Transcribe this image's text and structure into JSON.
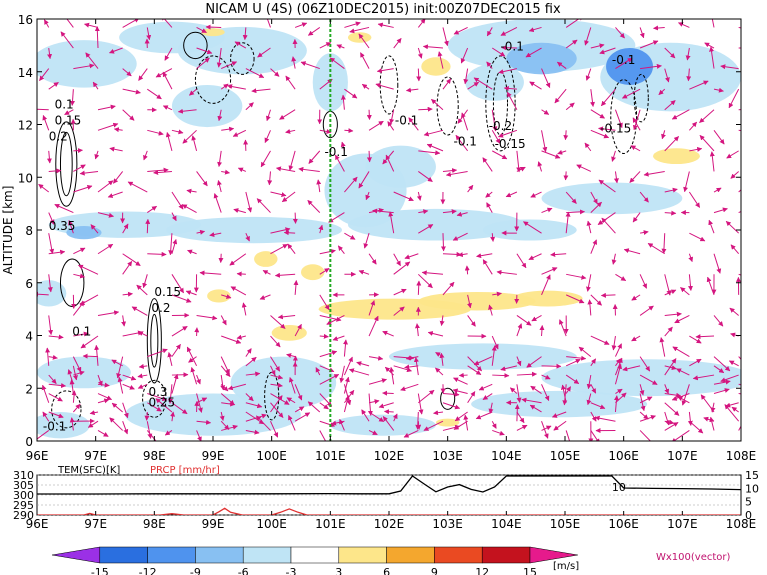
{
  "chart_data": [
    {
      "type": "heatmap",
      "title": "NICAM U (4S) (06Z10DEC2015) init:00Z07DEC2015 fix",
      "xlabel": "",
      "ylabel": "ALTITUDE [km]",
      "x_ticks": [
        "96E",
        "97E",
        "98E",
        "99E",
        "100E",
        "101E",
        "102E",
        "103E",
        "104E",
        "105E",
        "106E",
        "107E",
        "108E"
      ],
      "xlim": [
        96,
        108
      ],
      "y_ticks": [
        "0",
        "2",
        "4",
        "6",
        "8",
        "10",
        "12",
        "14",
        "16"
      ],
      "ylim": [
        0,
        16
      ],
      "grid": false,
      "marker_line_lon": 101,
      "colorbar": {
        "levels": [
          "-15",
          "-12",
          "-9",
          "-6",
          "-3",
          "3",
          "6",
          "9",
          "12",
          "15"
        ],
        "units": "[m/s]",
        "colors": [
          "#9b30e6",
          "#2a6fe0",
          "#4f93ee",
          "#88c0f2",
          "#bfe4f5",
          "#ffffff",
          "#fde68a",
          "#f4a72e",
          "#ea4a22",
          "#c4121e",
          "#e61a8c"
        ]
      },
      "vector_label": "Wx100(vector)",
      "contour_labels": [
        {
          "text": "-0.1",
          "lon": 96.1,
          "alt": 0.4
        },
        {
          "text": "0.25",
          "lon": 97.9,
          "alt": 1.3
        },
        {
          "text": "0.3",
          "lon": 97.9,
          "alt": 1.7
        },
        {
          "text": "0.2",
          "lon": 97.95,
          "alt": 4.9
        },
        {
          "text": "0.15",
          "lon": 98.0,
          "alt": 5.5
        },
        {
          "text": "0.1",
          "lon": 96.6,
          "alt": 4.0
        },
        {
          "text": "0.35",
          "lon": 96.2,
          "alt": 8.0
        },
        {
          "text": "0.2",
          "lon": 96.2,
          "alt": 11.4
        },
        {
          "text": "0.15",
          "lon": 96.3,
          "alt": 12.0
        },
        {
          "text": "0.1",
          "lon": 96.3,
          "alt": 12.6
        },
        {
          "text": "-0.1",
          "lon": 100.9,
          "alt": 10.8
        },
        {
          "text": "-0.1",
          "lon": 102.1,
          "alt": 12.0
        },
        {
          "text": "-0.1",
          "lon": 103.1,
          "alt": 11.2
        },
        {
          "text": "-0.2",
          "lon": 103.7,
          "alt": 11.8
        },
        {
          "text": "-0.15",
          "lon": 103.8,
          "alt": 11.1
        },
        {
          "text": "-0.1",
          "lon": 103.9,
          "alt": 14.8
        },
        {
          "text": "-0.1",
          "lon": 105.8,
          "alt": 14.3
        },
        {
          "text": "-0.15",
          "lon": 105.6,
          "alt": 11.7
        }
      ]
    },
    {
      "type": "line",
      "ylabel_left": "TEM(SFC)[K]",
      "ylabel_right": "PRCP [mm/hr]",
      "left_ticks": [
        "290",
        "295",
        "300",
        "305",
        "310"
      ],
      "right_ticks": [
        "0",
        "5",
        "10",
        "15"
      ],
      "x_ticks": [
        "96E",
        "97E",
        "98E",
        "99E",
        "100E",
        "101E",
        "102E",
        "103E",
        "104E",
        "105E",
        "106E",
        "107E",
        "108E"
      ],
      "series": [
        {
          "name": "TEM(SFC)",
          "color": "#000000",
          "x": [
            96,
            97,
            98,
            99,
            100,
            101,
            101.5,
            102,
            102.2,
            102.4,
            102.6,
            102.8,
            103,
            103.2,
            103.4,
            103.6,
            103.8,
            104,
            104.5,
            105,
            105.5,
            105.8,
            106,
            106.5,
            107,
            107.5,
            108
          ],
          "values": [
            300.5,
            300.5,
            300.6,
            300.6,
            300.6,
            300.7,
            300.6,
            300.6,
            302,
            309.5,
            305.5,
            301.6,
            304,
            305.2,
            302.8,
            301.5,
            304,
            309.5,
            309.5,
            309.5,
            309.5,
            309.5,
            303.5,
            303.3,
            303.2,
            303,
            302.7
          ]
        },
        {
          "name": "PRCP",
          "color": "#e03030",
          "x": [
            96,
            96.8,
            96.9,
            97,
            97.5,
            98.1,
            98.3,
            98.5,
            99,
            99.1,
            99.2,
            99.3,
            99.5,
            100,
            100.15,
            100.3,
            100.45,
            100.6,
            101,
            102,
            103,
            104,
            105,
            106,
            107,
            108
          ],
          "values": [
            0,
            0,
            0.6,
            0,
            0,
            0,
            0.5,
            0,
            0,
            1.2,
            2.5,
            1.0,
            0,
            0,
            1.0,
            2.3,
            1.0,
            0,
            0,
            0,
            0,
            0,
            0,
            0,
            0,
            0
          ]
        }
      ],
      "annotations": [
        {
          "text": "10",
          "lon": 105.8
        }
      ]
    }
  ]
}
